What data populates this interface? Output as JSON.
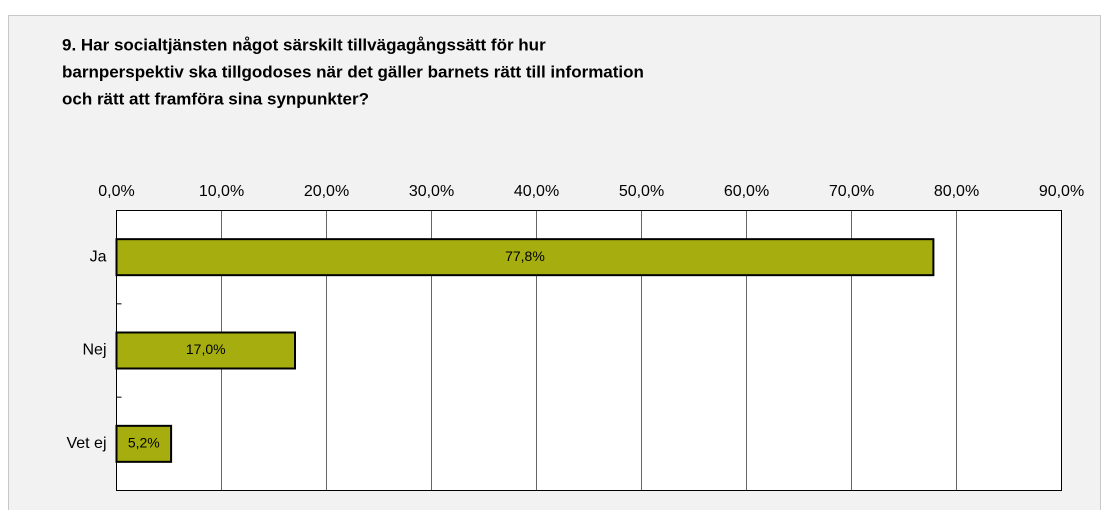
{
  "chart_data": {
    "type": "bar",
    "orientation": "horizontal",
    "title": [
      "9. Har socialtjänsten något särskilt tillvägagångssätt för hur",
      "barnperspektiv ska tillgodoses när det gäller barnets rätt till information",
      "och rätt att framföra sina synpunkter?"
    ],
    "categories": [
      "Ja",
      "Nej",
      "Vet ej"
    ],
    "values": [
      77.8,
      17.0,
      5.2
    ],
    "value_labels": [
      "77,8%",
      "17,0%",
      "5,2%"
    ],
    "color": "#a6ae0f",
    "xlim": [
      0,
      90
    ],
    "xticks": [
      {
        "value": 0,
        "label": "0,0%"
      },
      {
        "value": 10,
        "label": "10,0%"
      },
      {
        "value": 20,
        "label": "20,0%"
      },
      {
        "value": 30,
        "label": "30,0%"
      },
      {
        "value": 40,
        "label": "40,0%"
      },
      {
        "value": 50,
        "label": "50,0%"
      },
      {
        "value": 60,
        "label": "60,0%"
      },
      {
        "value": 70,
        "label": "70,0%"
      },
      {
        "value": 80,
        "label": "80,0%"
      },
      {
        "value": 90,
        "label": "90,0%"
      }
    ],
    "grid": true
  }
}
